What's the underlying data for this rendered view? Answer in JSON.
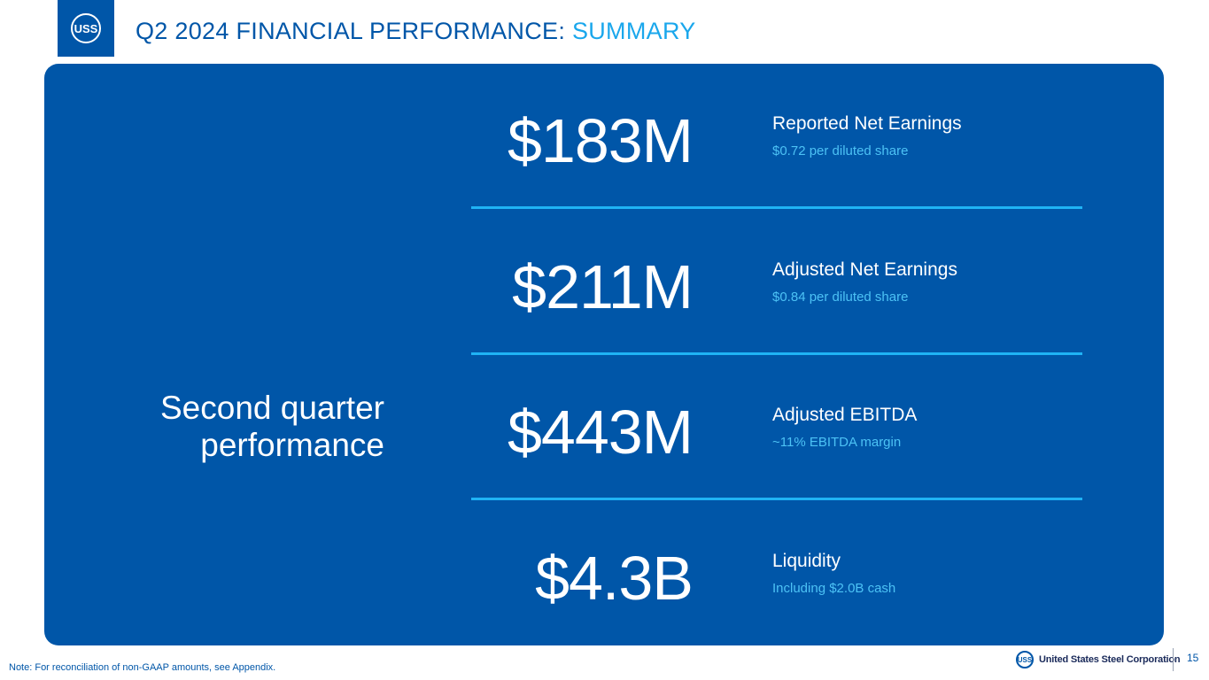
{
  "header": {
    "logo_text": "USS",
    "title_main": "Q2 2024 FINANCIAL PERFORMANCE:",
    "title_accent": "SUMMARY"
  },
  "panel": {
    "section_label_line1": "Second quarter",
    "section_label_line2": "performance",
    "metrics": [
      {
        "value": "$183M",
        "label": "Reported Net Earnings",
        "sub": "$0.72 per diluted share"
      },
      {
        "value": "$211M",
        "label": "Adjusted Net Earnings",
        "sub": "$0.84 per diluted share"
      },
      {
        "value": "$443M",
        "label": "Adjusted EBITDA",
        "sub": "~11% EBITDA margin"
      },
      {
        "value": "$4.3B",
        "label": "Liquidity",
        "sub": "Including $2.0B cash"
      }
    ]
  },
  "footer": {
    "note": "Note: For reconciliation of non-GAAP amounts, see Appendix.",
    "logo_text": "USS",
    "company_name": "United States Steel Corporation",
    "page_number": "15"
  },
  "colors": {
    "brand_blue": "#0056a8",
    "accent_cyan": "#1aa7ec",
    "divider": "#1fb3f5"
  }
}
